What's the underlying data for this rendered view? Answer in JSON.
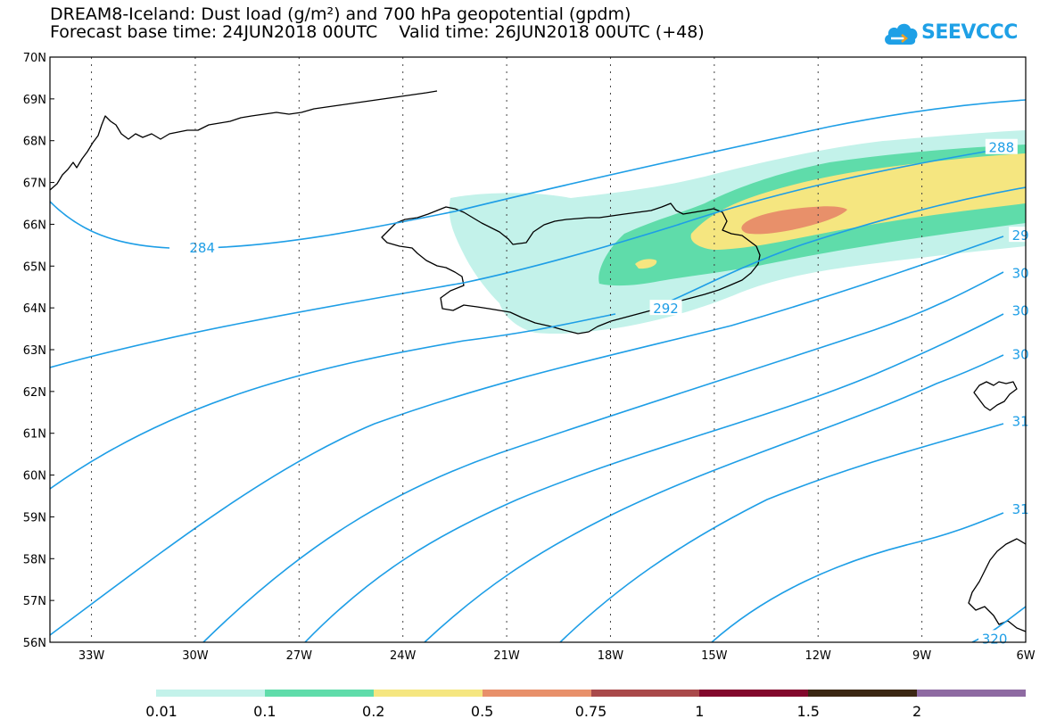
{
  "header": {
    "title_line1": "DREAM8-Iceland: Dust load (g/m²) and 700 hPa geopotential (gpdm)",
    "title_line2": "Forecast base time: 24JUN2018 00UTC    Valid time: 26JUN2018 00UTC (+48)"
  },
  "logo": {
    "text": "SEEVCCC",
    "icon": "cloud-icon",
    "color": "#1ea0e6"
  },
  "map": {
    "lat_labels": [
      "70N",
      "69N",
      "68N",
      "67N",
      "66N",
      "65N",
      "64N",
      "63N",
      "62N",
      "61N",
      "60N",
      "59N",
      "58N",
      "57N",
      "56N"
    ],
    "lon_labels": [
      "33W",
      "30W",
      "27W",
      "24W",
      "21W",
      "18W",
      "15W",
      "12W",
      "9W",
      "6W"
    ],
    "lat_range": [
      56,
      70
    ],
    "lon_range": [
      -34.2,
      -6
    ],
    "grid": true,
    "contour_color": "#1e9ee6",
    "contour_labels": [
      {
        "text": "284",
        "lon": -29.8,
        "lat": 65.45
      },
      {
        "text": "288",
        "lon": -6.7,
        "lat": 67.85
      },
      {
        "text": "292",
        "lon": -16.4,
        "lat": 64.0
      },
      {
        "text": "29",
        "lon": -6.15,
        "lat": 65.75
      },
      {
        "text": "30",
        "lon": -6.15,
        "lat": 64.85
      },
      {
        "text": "30",
        "lon": -6.15,
        "lat": 63.95
      },
      {
        "text": "30",
        "lon": -6.15,
        "lat": 62.9
      },
      {
        "text": "31",
        "lon": -6.15,
        "lat": 61.3
      },
      {
        "text": "31",
        "lon": -6.15,
        "lat": 59.2
      },
      {
        "text": "320",
        "lon": -6.9,
        "lat": 56.1
      }
    ]
  },
  "colorbar": {
    "colors": [
      "#c3f2ea",
      "#5fdcaa",
      "#f5e680",
      "#e8906a",
      "#a9494a",
      "#82082c",
      "#3b2713",
      "#8e6aa2"
    ],
    "labels": [
      "0.01",
      "0.1",
      "0.2",
      "0.5",
      "0.75",
      "1",
      "1.5",
      "2"
    ]
  }
}
